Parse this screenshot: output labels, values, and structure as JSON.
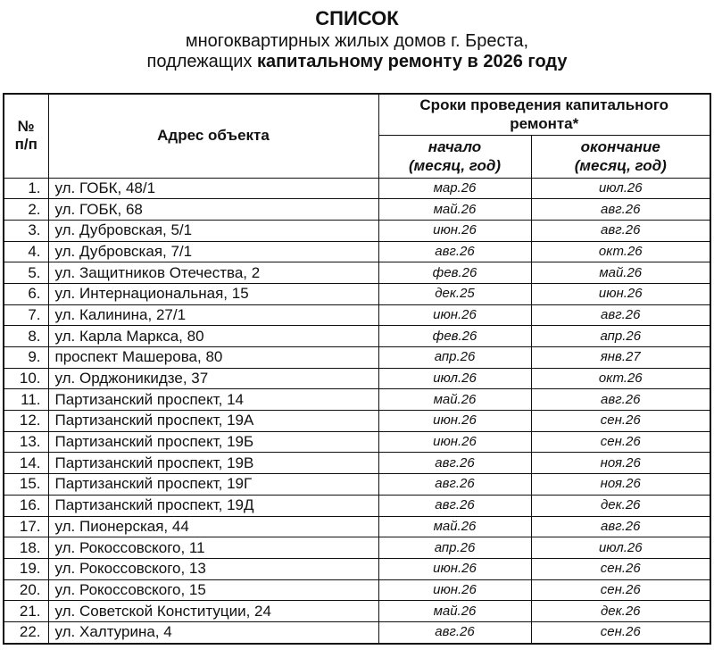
{
  "document": {
    "title": "СПИСОК",
    "subtitle_line1": "многоквартирных жилых домов г. Бреста,",
    "subtitle_line2_regular": "подлежащих ",
    "subtitle_line2_bold": "капитальному ремонту в 2026 году"
  },
  "table": {
    "headers": {
      "number": "№ п/п",
      "address": "Адрес объекта",
      "period": "Сроки проведения капитального ремонта*",
      "start": "начало (месяц, год)",
      "end": "окончание (месяц, год)"
    },
    "rows": [
      {
        "n": "1.",
        "address": "ул. ГОБК, 48/1",
        "start": "мар.26",
        "end": "июл.26"
      },
      {
        "n": "2.",
        "address": "ул. ГОБК, 68",
        "start": "май.26",
        "end": "авг.26"
      },
      {
        "n": "3.",
        "address": "ул. Дубровская, 5/1",
        "start": "июн.26",
        "end": "авг.26"
      },
      {
        "n": "4.",
        "address": "ул. Дубровская, 7/1",
        "start": "авг.26",
        "end": "окт.26"
      },
      {
        "n": "5.",
        "address": "ул. Защитников Отечества, 2",
        "start": "фев.26",
        "end": "май.26"
      },
      {
        "n": "6.",
        "address": "ул. Интернациональная, 15",
        "start": "дек.25",
        "end": "июн.26"
      },
      {
        "n": "7.",
        "address": "ул. Калинина, 27/1",
        "start": "июн.26",
        "end": "авг.26"
      },
      {
        "n": "8.",
        "address": "ул. Карла Маркса, 80",
        "start": "фев.26",
        "end": "апр.26"
      },
      {
        "n": "9.",
        "address": "проспект Машерова, 80",
        "start": "апр.26",
        "end": "янв.27"
      },
      {
        "n": "10.",
        "address": "ул. Орджоникидзе, 37",
        "start": "июл.26",
        "end": "окт.26"
      },
      {
        "n": "11.",
        "address": "Партизанский проспект, 14",
        "start": "май.26",
        "end": "авг.26"
      },
      {
        "n": "12.",
        "address": "Партизанский проспект, 19А",
        "start": "июн.26",
        "end": "сен.26"
      },
      {
        "n": "13.",
        "address": "Партизанский проспект, 19Б",
        "start": "июн.26",
        "end": "сен.26"
      },
      {
        "n": "14.",
        "address": "Партизанский проспект, 19В",
        "start": "авг.26",
        "end": "ноя.26"
      },
      {
        "n": "15.",
        "address": "Партизанский проспект, 19Г",
        "start": "авг.26",
        "end": "ноя.26"
      },
      {
        "n": "16.",
        "address": "Партизанский проспект, 19Д",
        "start": "авг.26",
        "end": "дек.26"
      },
      {
        "n": "17.",
        "address": "ул. Пионерская, 44",
        "start": "май.26",
        "end": "авг.26"
      },
      {
        "n": "18.",
        "address": "ул. Рокоссовского, 11",
        "start": "апр.26",
        "end": "июл.26"
      },
      {
        "n": "19.",
        "address": "ул. Рокоссовского, 13",
        "start": "июн.26",
        "end": "сен.26"
      },
      {
        "n": "20.",
        "address": "ул. Рокоссовского, 15",
        "start": "июн.26",
        "end": "сен.26"
      },
      {
        "n": "21.",
        "address": "ул. Советской Конституции, 24",
        "start": "май.26",
        "end": "дек.26"
      },
      {
        "n": "22.",
        "address": "ул. Халтурина, 4",
        "start": "авг.26",
        "end": "сен.26"
      }
    ]
  }
}
